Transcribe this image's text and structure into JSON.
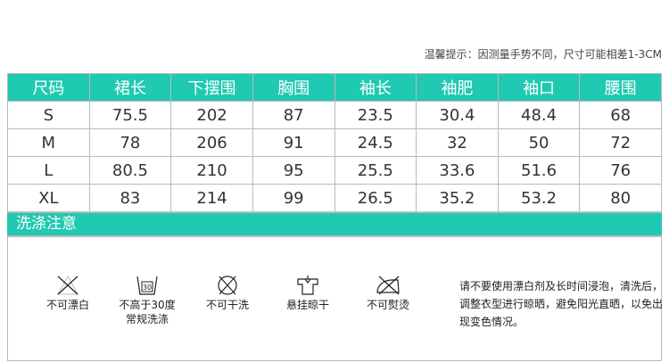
{
  "tip": "温馨提示：因测量手势不同，尺寸可能相差1-3CM",
  "headers": [
    "尺码",
    "裙长",
    "下摆围",
    "胸围",
    "袖长",
    "袖肥",
    "袖口",
    "腰围"
  ],
  "rows": [
    [
      "S",
      "75.5",
      "202",
      "87",
      "23.5",
      "30.4",
      "48.4",
      "68"
    ],
    [
      "M",
      "78",
      "206",
      "91",
      "24.5",
      "32",
      "50",
      "72"
    ],
    [
      "L",
      "80.5",
      "210",
      "95",
      "25.5",
      "33.6",
      "51.6",
      "76"
    ],
    [
      "XL",
      "83",
      "214",
      "99",
      "26.5",
      "35.2",
      "53.2",
      "80"
    ]
  ],
  "care_title": "洗涤注意",
  "care": [
    {
      "icon": "no-bleach-icon",
      "label": "不可漂白"
    },
    {
      "icon": "wash-30-icon",
      "label": "不高于30度",
      "label2": "常规洗涤",
      "temp": "30"
    },
    {
      "icon": "no-dry-clean-icon",
      "label": "不可干洗"
    },
    {
      "icon": "hang-dry-icon",
      "label": "悬挂晾干"
    },
    {
      "icon": "no-iron-icon",
      "label": "不可熨烫"
    }
  ],
  "note": "请不要使用漂白剂及长时间浸泡，清洗后，调整衣型进行晾晒，避免阳光直晒，以免出现变色情况。",
  "colors": {
    "accent": "#20c9b1"
  }
}
